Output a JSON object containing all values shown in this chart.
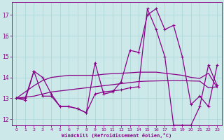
{
  "xlabel": "Windchill (Refroidissement éolien,°C)",
  "bg_color": "#cce8e8",
  "line_color": "#880088",
  "xlim": [
    -0.5,
    23.5
  ],
  "ylim": [
    11.7,
    17.6
  ],
  "yticks": [
    12,
    13,
    14,
    15,
    16,
    17
  ],
  "xticks": [
    0,
    1,
    2,
    3,
    4,
    5,
    6,
    7,
    8,
    9,
    10,
    11,
    12,
    13,
    14,
    15,
    16,
    17,
    18,
    19,
    20,
    21,
    22,
    23
  ],
  "series_marked": [
    [
      13.0,
      12.9,
      14.3,
      13.1,
      13.1,
      12.6,
      12.6,
      12.5,
      12.3,
      14.7,
      13.2,
      13.3,
      13.8,
      15.3,
      15.2,
      17.0,
      17.3,
      16.3,
      16.5,
      15.0,
      12.7,
      13.1,
      12.6,
      14.6
    ],
    [
      13.0,
      13.0,
      14.3,
      14.0,
      13.2,
      12.6,
      12.6,
      12.5,
      12.3,
      13.2,
      13.3,
      13.35,
      13.4,
      13.5,
      13.55,
      17.3,
      16.3,
      15.0,
      11.7,
      11.7,
      11.7,
      12.6,
      14.6,
      13.6
    ]
  ],
  "series_smooth": [
    [
      13.0,
      13.05,
      13.1,
      13.2,
      13.3,
      13.35,
      13.4,
      13.45,
      13.5,
      13.55,
      13.6,
      13.65,
      13.7,
      13.75,
      13.8,
      13.82,
      13.83,
      13.84,
      13.85,
      13.85,
      13.83,
      13.82,
      13.5,
      13.55
    ],
    [
      13.0,
      13.3,
      13.6,
      13.85,
      14.0,
      14.05,
      14.1,
      14.1,
      14.1,
      14.1,
      14.15,
      14.18,
      14.2,
      14.22,
      14.25,
      14.25,
      14.25,
      14.2,
      14.15,
      14.1,
      14.0,
      13.95,
      14.2,
      13.5
    ]
  ]
}
